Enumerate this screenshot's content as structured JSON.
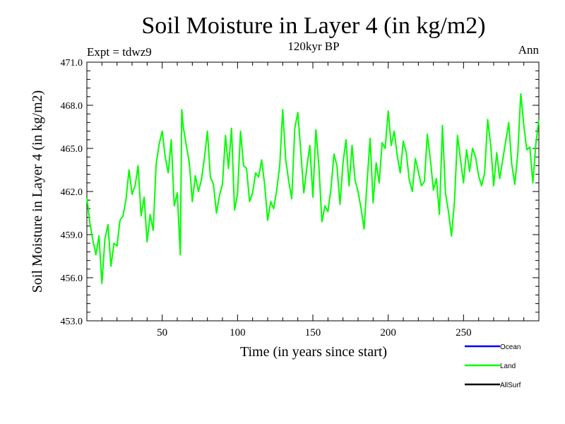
{
  "chart_data": {
    "type": "line",
    "title": "Soil Moisture in Layer 4 (in kg/m2)",
    "subtitle": "120kyr BP",
    "left_note": "Expt = tdwz9",
    "right_note": "Ann",
    "xlabel": "Time (in years since start)",
    "ylabel": "Soil Moisture in Layer 4 (in kg/m2)",
    "xlim": [
      0,
      300
    ],
    "ylim": [
      453.0,
      471.0
    ],
    "x_ticks": [
      50,
      100,
      150,
      200,
      250
    ],
    "x_tick_labels": [
      "50",
      "100",
      "150",
      "200",
      "250"
    ],
    "y_ticks": [
      453.0,
      456.0,
      459.0,
      462.0,
      465.0,
      468.0,
      471.0
    ],
    "y_tick_labels": [
      "453.0",
      "456.0",
      "459.0",
      "462.0",
      "465.0",
      "468.0",
      "471.0"
    ],
    "grid": false,
    "legend_position": "bottom-right",
    "legend": [
      {
        "name": "Ocean",
        "color": "#0000ff"
      },
      {
        "name": "Land",
        "color": "#00ff00"
      },
      {
        "name": "AllSurf",
        "color": "#000000"
      }
    ],
    "series": [
      {
        "name": "Land",
        "color": "#00ff00",
        "x": [
          0,
          2,
          4,
          6,
          8,
          10,
          12,
          14,
          16,
          18,
          20,
          22,
          24,
          26,
          28,
          30,
          32,
          34,
          36,
          38,
          40,
          42,
          44,
          46,
          48,
          50,
          52,
          54,
          56,
          58,
          60,
          62,
          63,
          64,
          66,
          68,
          70,
          72,
          74,
          76,
          78,
          80,
          82,
          84,
          86,
          88,
          90,
          92,
          94,
          96,
          98,
          100,
          102,
          104,
          106,
          108,
          110,
          112,
          114,
          116,
          118,
          120,
          122,
          124,
          126,
          128,
          130,
          132,
          134,
          136,
          138,
          140,
          142,
          144,
          146,
          148,
          150,
          152,
          154,
          156,
          158,
          160,
          162,
          164,
          166,
          168,
          170,
          172,
          174,
          176,
          178,
          180,
          182,
          184,
          186,
          188,
          190,
          192,
          194,
          196,
          198,
          200,
          202,
          204,
          206,
          208,
          210,
          212,
          214,
          216,
          218,
          220,
          222,
          224,
          226,
          228,
          230,
          232,
          234,
          236,
          238,
          240,
          242,
          244,
          246,
          248,
          250,
          252,
          254,
          256,
          258,
          260,
          262,
          264,
          266,
          268,
          270,
          272,
          274,
          276,
          278,
          280,
          282,
          284,
          286,
          288,
          290,
          292,
          294,
          296,
          298,
          300
        ],
        "values": [
          461.6,
          459.8,
          458.6,
          457.6,
          458.9,
          455.6,
          458.7,
          459.7,
          456.8,
          458.4,
          458.2,
          460.0,
          460.3,
          461.5,
          463.5,
          461.8,
          462.4,
          463.8,
          460.3,
          461.6,
          458.5,
          460.4,
          459.3,
          463.9,
          465.3,
          466.2,
          464.4,
          463.3,
          465.6,
          461.0,
          461.9,
          457.6,
          467.7,
          466.5,
          465.2,
          464.0,
          461.3,
          463.1,
          462.0,
          462.8,
          464.3,
          466.2,
          463.0,
          462.5,
          460.5,
          461.7,
          462.5,
          465.9,
          463.6,
          466.4,
          460.7,
          461.8,
          466.2,
          463.8,
          463.6,
          461.3,
          461.9,
          463.3,
          463.0,
          464.2,
          462.5,
          460.0,
          461.3,
          460.8,
          462.1,
          463.8,
          467.7,
          464.2,
          462.7,
          461.5,
          466.4,
          467.5,
          464.8,
          461.9,
          463.7,
          465.2,
          461.6,
          466.3,
          463.8,
          459.9,
          461.0,
          460.6,
          462.2,
          464.6,
          463.8,
          461.1,
          464.0,
          465.6,
          462.4,
          465.2,
          462.8,
          462.0,
          460.8,
          459.4,
          462.7,
          465.7,
          461.2,
          464.0,
          462.6,
          465.4,
          465.0,
          467.6,
          465.2,
          466.2,
          464.5,
          463.3,
          465.5,
          464.7,
          462.8,
          462.0,
          464.3,
          463.4,
          462.4,
          462.7,
          466.0,
          464.2,
          462.1,
          462.9,
          460.4,
          466.6,
          461.9,
          460.6,
          458.9,
          461.3,
          465.9,
          464.2,
          462.6,
          464.9,
          463.4,
          465.0,
          464.4,
          463.1,
          462.4,
          463.3,
          467.0,
          465.3,
          462.4,
          464.7,
          462.9,
          464.2,
          465.5,
          466.8,
          463.9,
          462.5,
          464.6,
          468.8,
          466.6,
          464.9,
          465.1,
          462.6,
          465.3,
          467.0
        ]
      }
    ]
  }
}
